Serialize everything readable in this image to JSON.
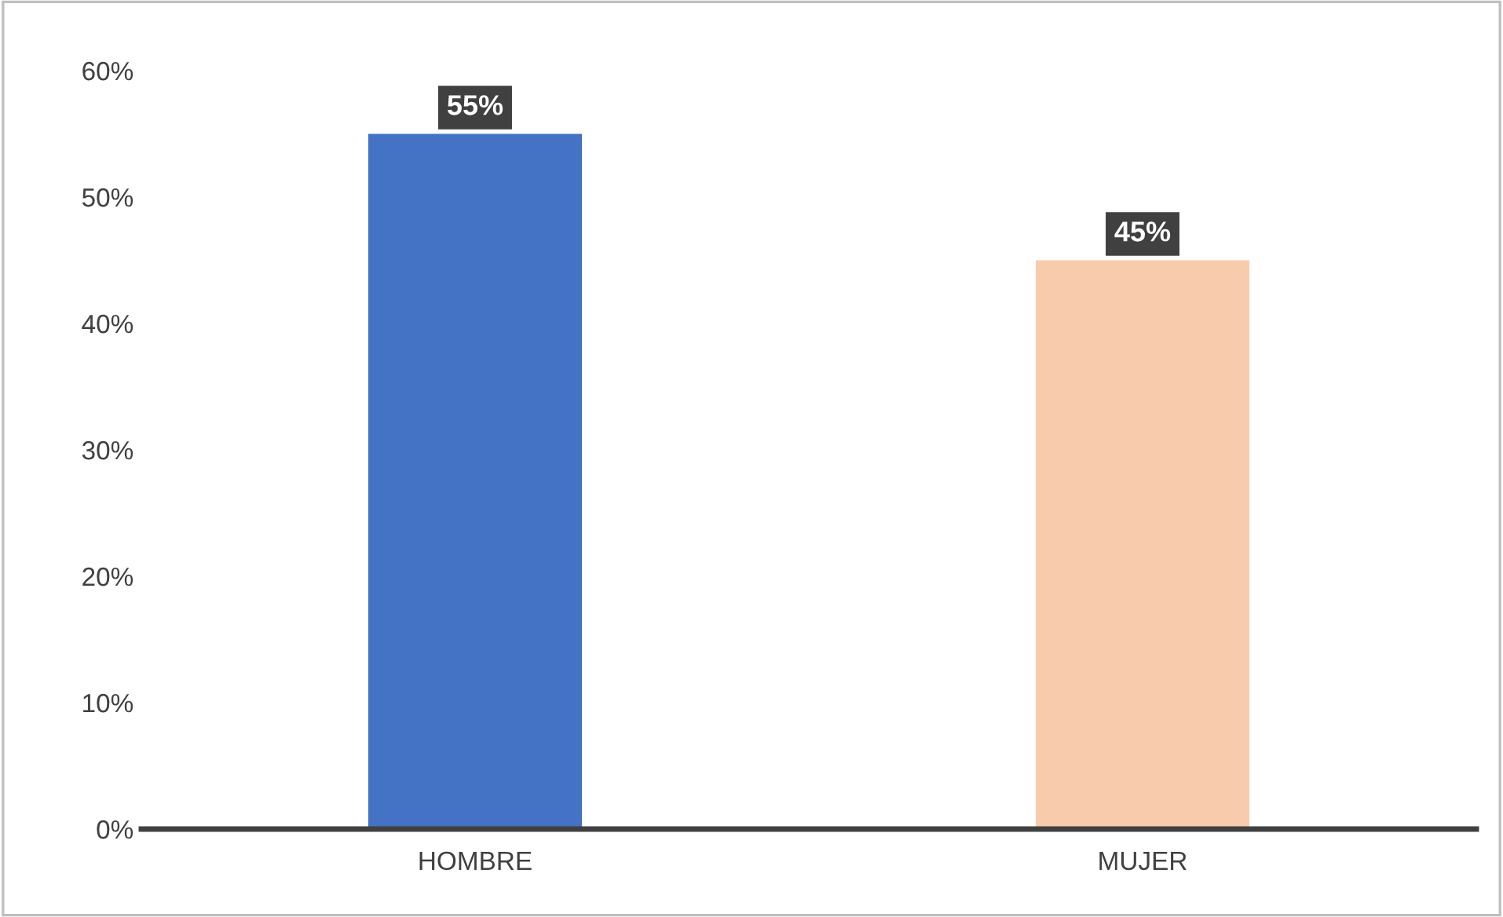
{
  "chart_data": {
    "type": "bar",
    "categories": [
      "HOMBRE",
      "MUJER"
    ],
    "values": [
      55,
      45
    ],
    "colors": [
      "#4472c4",
      "#f8cbad"
    ],
    "value_labels": [
      "55%",
      "45%"
    ],
    "ylim": [
      0,
      60
    ],
    "yticks": [
      {
        "value": 0,
        "label": "0%"
      },
      {
        "value": 10,
        "label": "10%"
      },
      {
        "value": 20,
        "label": "20%"
      },
      {
        "value": 30,
        "label": "30%"
      },
      {
        "value": 40,
        "label": "40%"
      },
      {
        "value": 50,
        "label": "50%"
      },
      {
        "value": 60,
        "label": "60%"
      }
    ],
    "grid": false,
    "legend": false
  }
}
